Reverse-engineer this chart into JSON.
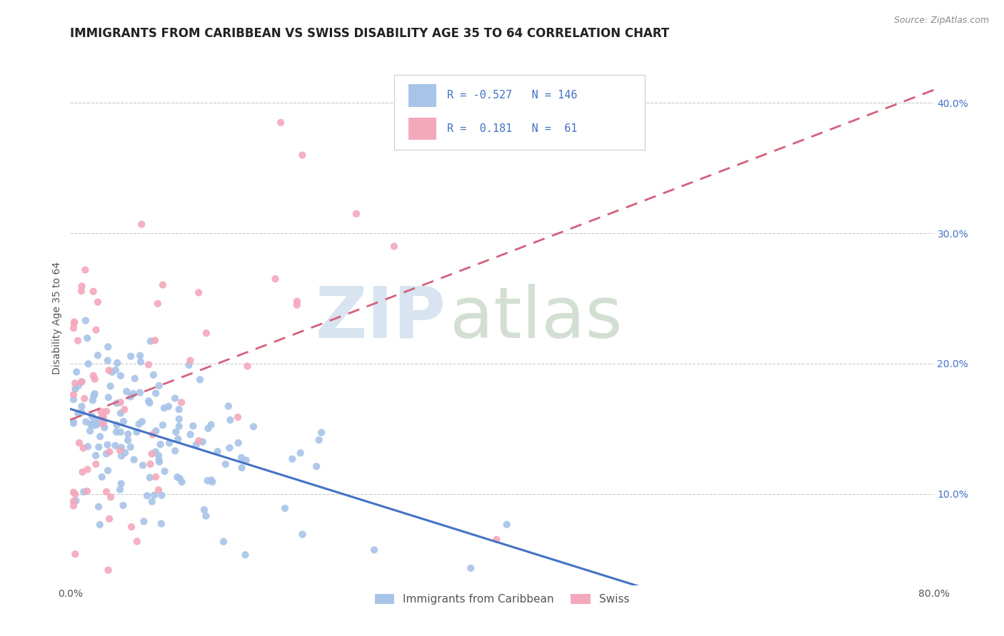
{
  "title": "IMMIGRANTS FROM CARIBBEAN VS SWISS DISABILITY AGE 35 TO 64 CORRELATION CHART",
  "source_text": "Source: ZipAtlas.com",
  "ylabel": "Disability Age 35 to 64",
  "xlim": [
    0.0,
    0.8
  ],
  "ylim": [
    0.03,
    0.44
  ],
  "xticks": [
    0.0,
    0.1,
    0.2,
    0.3,
    0.4,
    0.5,
    0.6,
    0.7,
    0.8
  ],
  "xticklabels": [
    "0.0%",
    "",
    "",
    "",
    "",
    "",
    "",
    "",
    "80.0%"
  ],
  "right_ytick_vals": [
    0.1,
    0.2,
    0.3,
    0.4
  ],
  "right_yticklabels": [
    "10.0%",
    "20.0%",
    "30.0%",
    "40.0%"
  ],
  "caribbean_color": "#A8C4E8",
  "swiss_color": "#F4A8BC",
  "caribbean_line_color": "#4472C4",
  "swiss_line_color": "#D4607C",
  "background_color": "#FFFFFF",
  "grid_color": "#CCCCCC",
  "R_caribbean": -0.527,
  "N_caribbean": 146,
  "R_swiss": 0.181,
  "N_swiss": 61,
  "legend_label_caribbean": "Immigrants from Caribbean",
  "legend_label_swiss": "Swiss",
  "watermark_zip": "ZIP",
  "watermark_atlas": "atlas",
  "title_fontsize": 12,
  "axis_label_fontsize": 10,
  "tick_fontsize": 10,
  "seed_caribbean": 42,
  "seed_swiss": 99
}
